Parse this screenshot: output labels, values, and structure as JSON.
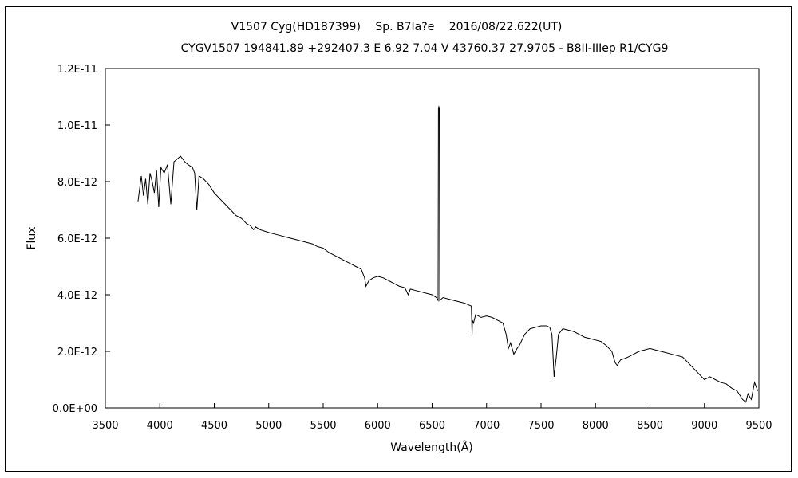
{
  "chart_data": {
    "type": "line",
    "title": "V1507 Cyg(HD187399)　 Sp. B7Ia?e　 2016/08/22.622(UT)",
    "subtitle": "CYGV1507 194841.89 +292407.3 E 6.92 7.04 V 43760.37 27.9705 - B8II-IIIep R1/CYG9",
    "xlabel": "Wavelength(Å)",
    "ylabel": "Flux",
    "xlim": [
      3500,
      9500
    ],
    "ylim": [
      0,
      1.2e-11
    ],
    "x_ticks": [
      3500,
      4000,
      4500,
      5000,
      5500,
      6000,
      6500,
      7000,
      7500,
      8000,
      8500,
      9000,
      9500
    ],
    "x_tick_labels": [
      "3500",
      "4000",
      "4500",
      "5000",
      "5500",
      "6000",
      "6500",
      "7000",
      "7500",
      "8000",
      "8500",
      "9000",
      "9500"
    ],
    "y_ticks": [
      0,
      2e-12,
      4e-12,
      6e-12,
      8e-12,
      1e-11,
      1.2e-11
    ],
    "y_tick_labels": [
      "0.0E+00",
      "2.0E-12",
      "4.0E-12",
      "6.0E-12",
      "8.0E-12",
      "1.0E-11",
      "1.2E-11"
    ],
    "grid": false,
    "series": [
      {
        "color": "#000000",
        "x": [
          3800,
          3830,
          3850,
          3870,
          3890,
          3910,
          3930,
          3950,
          3970,
          3990,
          4010,
          4040,
          4070,
          4101,
          4130,
          4160,
          4190,
          4210,
          4230,
          4260,
          4300,
          4320,
          4340,
          4360,
          4400,
          4450,
          4500,
          4550,
          4600,
          4650,
          4700,
          4750,
          4800,
          4830,
          4861,
          4880,
          4920,
          4960,
          5000,
          5050,
          5100,
          5150,
          5200,
          5250,
          5300,
          5350,
          5400,
          5450,
          5500,
          5550,
          5600,
          5650,
          5700,
          5750,
          5800,
          5850,
          5880,
          5893,
          5920,
          5960,
          6000,
          6050,
          6100,
          6150,
          6200,
          6250,
          6280,
          6300,
          6350,
          6400,
          6450,
          6500,
          6540,
          6555,
          6558,
          6562,
          6566,
          6570,
          6600,
          6650,
          6700,
          6750,
          6800,
          6860,
          6867,
          6870,
          6880,
          6900,
          6950,
          7000,
          7050,
          7100,
          7150,
          7180,
          7200,
          7220,
          7250,
          7280,
          7300,
          7350,
          7400,
          7450,
          7500,
          7550,
          7580,
          7600,
          7620,
          7640,
          7660,
          7700,
          7750,
          7800,
          7850,
          7900,
          7950,
          8000,
          8050,
          8100,
          8150,
          8180,
          8200,
          8230,
          8270,
          8300,
          8350,
          8400,
          8450,
          8500,
          8550,
          8600,
          8650,
          8700,
          8750,
          8800,
          8850,
          8900,
          8950,
          9000,
          9050,
          9100,
          9150,
          9200,
          9250,
          9300,
          9350,
          9380,
          9400,
          9430,
          9460,
          9490
        ],
        "y": [
          7.3e-12,
          8.2e-12,
          7.5e-12,
          8.1e-12,
          7.2e-12,
          8.3e-12,
          8e-12,
          7.6e-12,
          8.4e-12,
          7.1e-12,
          8.5e-12,
          8.3e-12,
          8.6e-12,
          7.2e-12,
          8.7e-12,
          8.8e-12,
          8.9e-12,
          8.8e-12,
          8.7e-12,
          8.6e-12,
          8.5e-12,
          8.3e-12,
          7e-12,
          8.2e-12,
          8.1e-12,
          7.9e-12,
          7.6e-12,
          7.4e-12,
          7.2e-12,
          7e-12,
          6.8e-12,
          6.7e-12,
          6.5e-12,
          6.45e-12,
          6.3e-12,
          6.4e-12,
          6.3e-12,
          6.25e-12,
          6.2e-12,
          6.15e-12,
          6.1e-12,
          6.05e-12,
          6e-12,
          5.95e-12,
          5.9e-12,
          5.85e-12,
          5.8e-12,
          5.7e-12,
          5.65e-12,
          5.5e-12,
          5.4e-12,
          5.3e-12,
          5.2e-12,
          5.1e-12,
          5e-12,
          4.9e-12,
          4.6e-12,
          4.3e-12,
          4.5e-12,
          4.6e-12,
          4.65e-12,
          4.6e-12,
          4.5e-12,
          4.4e-12,
          4.3e-12,
          4.25e-12,
          4e-12,
          4.2e-12,
          4.15e-12,
          4.1e-12,
          4.05e-12,
          4e-12,
          3.9e-12,
          3.8e-12,
          1.06e-11,
          1.065e-11,
          1.06e-11,
          3.8e-12,
          3.9e-12,
          3.85e-12,
          3.8e-12,
          3.75e-12,
          3.7e-12,
          3.6e-12,
          2.6e-12,
          3.1e-12,
          3e-12,
          3.3e-12,
          3.2e-12,
          3.25e-12,
          3.2e-12,
          3.1e-12,
          3e-12,
          2.6e-12,
          2.1e-12,
          2.3e-12,
          1.9e-12,
          2.1e-12,
          2.2e-12,
          2.6e-12,
          2.8e-12,
          2.85e-12,
          2.9e-12,
          2.9e-12,
          2.85e-12,
          2.6e-12,
          1.1e-12,
          1.8e-12,
          2.6e-12,
          2.8e-12,
          2.75e-12,
          2.7e-12,
          2.6e-12,
          2.5e-12,
          2.45e-12,
          2.4e-12,
          2.35e-12,
          2.2e-12,
          2e-12,
          1.6e-12,
          1.5e-12,
          1.7e-12,
          1.75e-12,
          1.8e-12,
          1.9e-12,
          2e-12,
          2.05e-12,
          2.1e-12,
          2.05e-12,
          2e-12,
          1.95e-12,
          1.9e-12,
          1.85e-12,
          1.8e-12,
          1.6e-12,
          1.4e-12,
          1.2e-12,
          1e-12,
          1.1e-12,
          1e-12,
          9e-13,
          8.5e-13,
          7e-13,
          6e-13,
          3e-13,
          2e-13,
          5e-13,
          3e-13,
          9e-13,
          6e-13
        ]
      }
    ]
  }
}
